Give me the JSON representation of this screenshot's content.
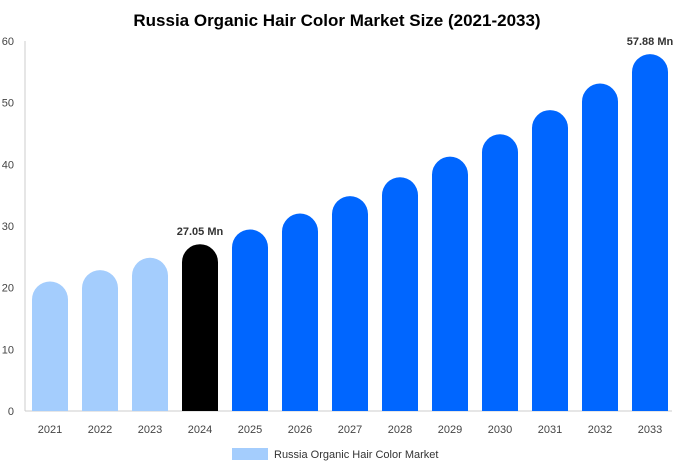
{
  "chart_data": {
    "type": "bar",
    "title": "Russia Organic Hair Color Market Size (2021-2033)",
    "categories": [
      "2021",
      "2022",
      "2023",
      "2024",
      "2025",
      "2026",
      "2027",
      "2028",
      "2029",
      "2030",
      "2031",
      "2032",
      "2033"
    ],
    "series": [
      {
        "name": "Russia Organic Hair Color Market",
        "values": [
          21.0,
          22.85,
          24.86,
          27.05,
          29.43,
          32.02,
          34.84,
          37.9,
          41.24,
          44.87,
          48.8,
          53.1,
          57.88
        ]
      }
    ],
    "data_labels": {
      "2024": "27.05 Mn",
      "2033": "57.88 Mn"
    },
    "ylim": [
      0,
      60
    ],
    "yticks": [
      0,
      10,
      20,
      30,
      40,
      50,
      60
    ],
    "grid": false,
    "legend": "bottom",
    "colors": {
      "historical": "#a4cdfd",
      "current": "#000000",
      "forecast": "#0066ff"
    }
  }
}
